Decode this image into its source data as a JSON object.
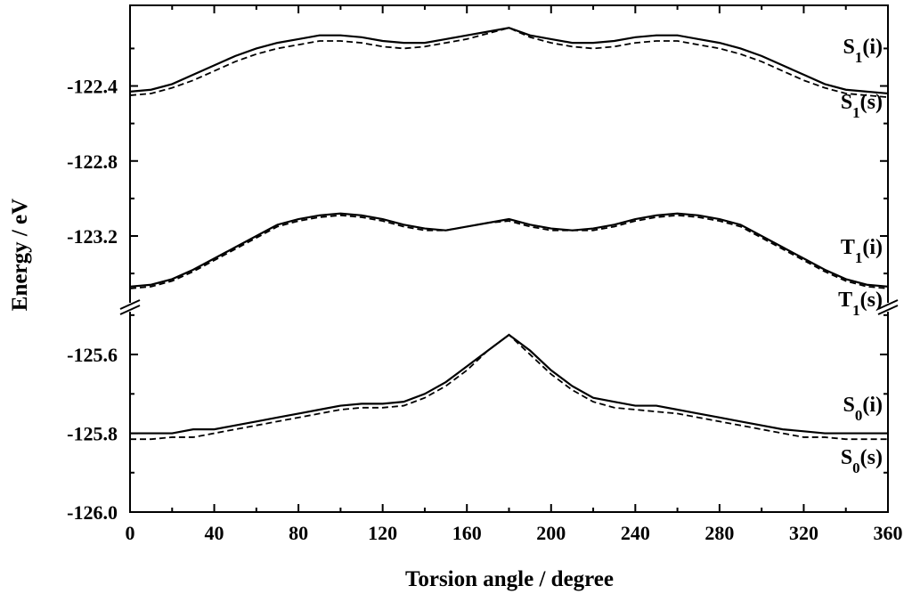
{
  "chart_data": {
    "type": "line",
    "title": "",
    "xlabel": "Torsion angle / degree",
    "ylabel": "Energy / eV",
    "xlim": [
      0,
      360
    ],
    "xticks": [
      "0",
      "40",
      "80",
      "120",
      "160",
      "200",
      "240",
      "280",
      "320",
      "360"
    ],
    "y_axis_break": true,
    "panels": [
      {
        "name": "upper",
        "ylim": [
          -123.58,
          -121.97
        ],
        "yticks": [
          "-122.4",
          "-122.8",
          "-123.2"
        ]
      },
      {
        "name": "lower",
        "ylim": [
          -126.0,
          -125.48
        ],
        "yticks": [
          "-125.6",
          "-125.8",
          "-126.0"
        ]
      }
    ],
    "grid": false,
    "legend": "none",
    "x": [
      0,
      10,
      20,
      30,
      40,
      50,
      60,
      70,
      80,
      90,
      100,
      110,
      120,
      130,
      140,
      150,
      160,
      170,
      180,
      190,
      200,
      210,
      220,
      230,
      240,
      250,
      260,
      270,
      280,
      290,
      300,
      310,
      320,
      330,
      340,
      350,
      360
    ],
    "series": [
      {
        "name": "S1(i)",
        "label": {
          "main": "S",
          "sub": "1",
          "tail": "(i)"
        },
        "panel": "upper",
        "style": "solid",
        "values": [
          -122.43,
          -122.42,
          -122.39,
          -122.34,
          -122.29,
          -122.24,
          -122.2,
          -122.17,
          -122.15,
          -122.13,
          -122.13,
          -122.14,
          -122.16,
          -122.17,
          -122.17,
          -122.15,
          -122.13,
          -122.11,
          -122.09,
          -122.13,
          -122.15,
          -122.17,
          -122.17,
          -122.16,
          -122.14,
          -122.13,
          -122.13,
          -122.15,
          -122.17,
          -122.2,
          -122.24,
          -122.29,
          -122.34,
          -122.39,
          -122.42,
          -122.43,
          -122.44
        ]
      },
      {
        "name": "S1(s)",
        "label": {
          "main": "S",
          "sub": "1",
          "tail": "(s)"
        },
        "panel": "upper",
        "style": "dashed",
        "values": [
          -122.45,
          -122.44,
          -122.41,
          -122.37,
          -122.32,
          -122.27,
          -122.23,
          -122.2,
          -122.18,
          -122.16,
          -122.16,
          -122.17,
          -122.19,
          -122.2,
          -122.19,
          -122.17,
          -122.15,
          -122.12,
          -122.09,
          -122.14,
          -122.17,
          -122.19,
          -122.2,
          -122.19,
          -122.17,
          -122.16,
          -122.16,
          -122.18,
          -122.2,
          -122.23,
          -122.27,
          -122.32,
          -122.37,
          -122.41,
          -122.44,
          -122.45,
          -122.46
        ]
      },
      {
        "name": "T1(i)",
        "label": {
          "main": "T",
          "sub": "1",
          "tail": "(i)"
        },
        "panel": "upper",
        "style": "solid",
        "values": [
          -123.47,
          -123.46,
          -123.43,
          -123.38,
          -123.32,
          -123.26,
          -123.2,
          -123.14,
          -123.11,
          -123.09,
          -123.08,
          -123.09,
          -123.11,
          -123.14,
          -123.16,
          -123.17,
          -123.15,
          -123.13,
          -123.11,
          -123.14,
          -123.16,
          -123.17,
          -123.16,
          -123.14,
          -123.11,
          -123.09,
          -123.08,
          -123.09,
          -123.11,
          -123.14,
          -123.2,
          -123.26,
          -123.32,
          -123.38,
          -123.43,
          -123.46,
          -123.47
        ]
      },
      {
        "name": "T1(s)",
        "label": {
          "main": "T",
          "sub": "1",
          "tail": "(s)"
        },
        "panel": "upper",
        "style": "dashed",
        "values": [
          -123.48,
          -123.47,
          -123.44,
          -123.39,
          -123.33,
          -123.27,
          -123.21,
          -123.15,
          -123.12,
          -123.1,
          -123.09,
          -123.1,
          -123.12,
          -123.15,
          -123.17,
          -123.17,
          -123.15,
          -123.13,
          -123.12,
          -123.15,
          -123.17,
          -123.17,
          -123.17,
          -123.15,
          -123.12,
          -123.1,
          -123.09,
          -123.1,
          -123.12,
          -123.15,
          -123.21,
          -123.27,
          -123.33,
          -123.39,
          -123.44,
          -123.47,
          -123.48
        ]
      },
      {
        "name": "S0(i)",
        "label": {
          "main": "S",
          "sub": "0",
          "tail": "(i)"
        },
        "panel": "lower",
        "style": "solid",
        "values": [
          -125.8,
          -125.8,
          -125.8,
          -125.79,
          -125.79,
          -125.78,
          -125.77,
          -125.76,
          -125.75,
          -125.74,
          -125.73,
          -125.725,
          -125.725,
          -125.72,
          -125.7,
          -125.67,
          -125.63,
          -125.59,
          -125.55,
          -125.59,
          -125.64,
          -125.68,
          -125.71,
          -125.72,
          -125.73,
          -125.73,
          -125.74,
          -125.75,
          -125.76,
          -125.77,
          -125.78,
          -125.79,
          -125.795,
          -125.8,
          -125.8,
          -125.8,
          -125.8
        ]
      },
      {
        "name": "S0(s)",
        "label": {
          "main": "S",
          "sub": "0",
          "tail": "(s)"
        },
        "panel": "lower",
        "style": "dashed",
        "values": [
          -125.815,
          -125.815,
          -125.81,
          -125.81,
          -125.8,
          -125.79,
          -125.78,
          -125.77,
          -125.76,
          -125.75,
          -125.74,
          -125.735,
          -125.735,
          -125.73,
          -125.71,
          -125.68,
          -125.64,
          -125.59,
          -125.55,
          -125.6,
          -125.65,
          -125.69,
          -125.72,
          -125.735,
          -125.74,
          -125.745,
          -125.75,
          -125.76,
          -125.77,
          -125.78,
          -125.79,
          -125.8,
          -125.81,
          -125.81,
          -125.815,
          -125.815,
          -125.815
        ]
      }
    ]
  }
}
